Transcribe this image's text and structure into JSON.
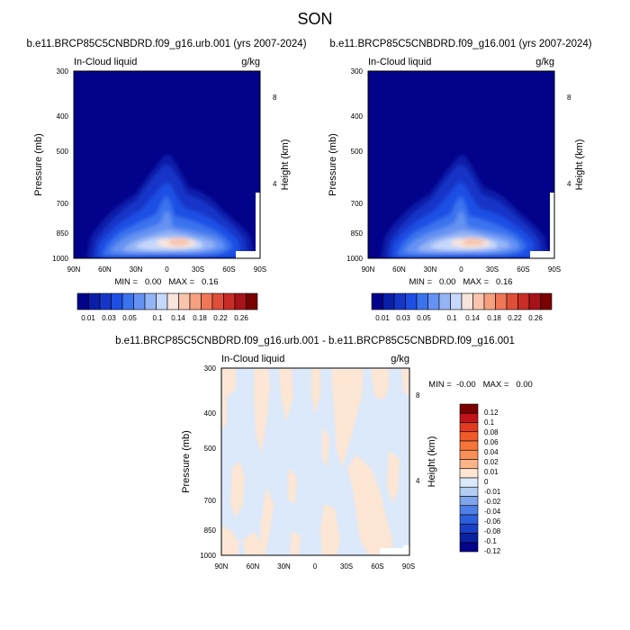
{
  "figure_title": "SON",
  "chart_data": [
    {
      "type": "heatmap",
      "title": "b.e11.BRCP85C5CNBDRD.f09_g16.urb.001 (yrs 2007-2024)",
      "left_label": "In-Cloud liquid",
      "right_label": "g/kg",
      "ylabel": "Pressure (mb)",
      "ylabel_right": "Height (km)",
      "x_ticks": [
        "90N",
        "60N",
        "30N",
        "0",
        "30S",
        "60S",
        "90S"
      ],
      "y_ticks": [
        "300",
        "400",
        "500",
        "700",
        "850",
        "1000"
      ],
      "y_ticks_right": [
        "8",
        "4"
      ],
      "ylim": [
        1000,
        300
      ],
      "y_scale": "log-pressure",
      "stats_text": "MIN =   0.00   MAX =   0.16",
      "min": 0.0,
      "max": 0.16,
      "peak_value": 0.16,
      "colorbar": {
        "orientation": "horizontal",
        "labels": [
          "0.01",
          "0.03",
          "0.05",
          "0.1",
          "0.14",
          "0.18",
          "0.22",
          "0.26"
        ],
        "levels": [
          0.01,
          0.02,
          0.03,
          0.04,
          0.05,
          0.07,
          0.1,
          0.12,
          0.14,
          0.16,
          0.18,
          0.2,
          0.22,
          0.24,
          0.26
        ],
        "colors": [
          "#02028a",
          "#0a1fa8",
          "#1536c8",
          "#1e4fe4",
          "#3b73ee",
          "#6592f2",
          "#94b4f5",
          "#c6d8fb",
          "#f7e4dc",
          "#f9c4ac",
          "#f5a07f",
          "#ef7757",
          "#e04e39",
          "#c92d25",
          "#a8121a",
          "#7a0000"
        ]
      }
    },
    {
      "type": "heatmap",
      "title": "b.e11.BRCP85C5CNBDRD.f09_g16.001 (yrs 2007-2024)",
      "left_label": "In-Cloud liquid",
      "right_label": "g/kg",
      "ylabel": "Pressure (mb)",
      "ylabel_right": "Height (km)",
      "x_ticks": [
        "90N",
        "60N",
        "30N",
        "0",
        "30S",
        "60S",
        "90S"
      ],
      "y_ticks": [
        "300",
        "400",
        "500",
        "700",
        "850",
        "1000"
      ],
      "y_ticks_right": [
        "8",
        "4"
      ],
      "ylim": [
        1000,
        300
      ],
      "y_scale": "log-pressure",
      "stats_text": "MIN =   0.00   MAX =   0.16",
      "min": 0.0,
      "max": 0.16,
      "peak_value": 0.16,
      "colorbar": {
        "orientation": "horizontal",
        "labels": [
          "0.01",
          "0.03",
          "0.05",
          "0.1",
          "0.14",
          "0.18",
          "0.22",
          "0.26"
        ],
        "levels": [
          0.01,
          0.02,
          0.03,
          0.04,
          0.05,
          0.07,
          0.1,
          0.12,
          0.14,
          0.16,
          0.18,
          0.2,
          0.22,
          0.24,
          0.26
        ],
        "colors": [
          "#02028a",
          "#0a1fa8",
          "#1536c8",
          "#1e4fe4",
          "#3b73ee",
          "#6592f2",
          "#94b4f5",
          "#c6d8fb",
          "#f7e4dc",
          "#f9c4ac",
          "#f5a07f",
          "#ef7757",
          "#e04e39",
          "#c92d25",
          "#a8121a",
          "#7a0000"
        ]
      }
    },
    {
      "type": "heatmap",
      "title": "b.e11.BRCP85C5CNBDRD.f09_g16.urb.001 - b.e11.BRCP85C5CNBDRD.f09_g16.001",
      "left_label": "In-Cloud liquid",
      "right_label": "g/kg",
      "ylabel": "Pressure (mb)",
      "ylabel_right": "Height (km)",
      "x_ticks": [
        "90N",
        "60N",
        "30N",
        "0",
        "30S",
        "60S",
        "90S"
      ],
      "y_ticks": [
        "300",
        "400",
        "500",
        "700",
        "850",
        "1000"
      ],
      "y_ticks_right": [
        "8",
        "4"
      ],
      "ylim": [
        1000,
        300
      ],
      "y_scale": "log-pressure",
      "stats_text": "MIN =  -0.00   MAX =   0.00",
      "min": -0.0,
      "max": 0.0,
      "colorbar": {
        "orientation": "vertical",
        "labels": [
          "0.12",
          "0.1",
          "0.08",
          "0.06",
          "0.04",
          "0.02",
          "0.01",
          "0",
          "-0.01",
          "-0.02",
          "-0.04",
          "-0.06",
          "-0.08",
          "-0.1",
          "-0.12"
        ],
        "colors": [
          "#7a0000",
          "#c0141a",
          "#e23a1e",
          "#f05a28",
          "#f5743a",
          "#f89058",
          "#fbb489",
          "#fde6d3",
          "#dbe9fb",
          "#b3cef5",
          "#7ea4ec",
          "#4f7fe6",
          "#2d5fdc",
          "#1a3fc8",
          "#0a22a0",
          "#03048a"
        ]
      }
    }
  ]
}
